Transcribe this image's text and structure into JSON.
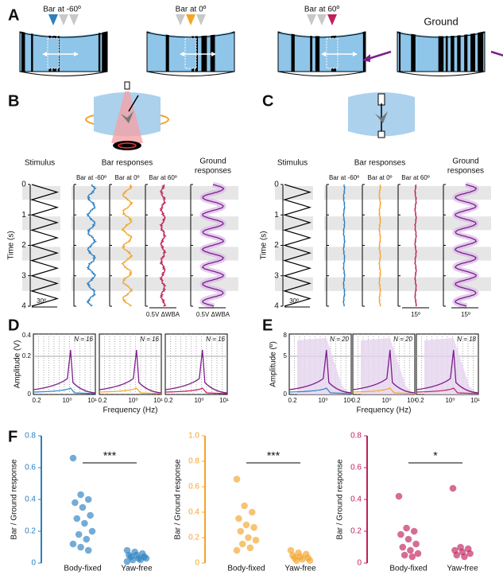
{
  "panel_labels": [
    "A",
    "B",
    "C",
    "D",
    "E",
    "F"
  ],
  "panel_a": {
    "bars": [
      "Bar at -60º",
      "Bar at 0º",
      "Bar at 60º"
    ],
    "ground": "Ground"
  },
  "panel_b": {
    "columns": [
      "Stimulus",
      "Bar responses",
      "Ground",
      "responses"
    ],
    "bars": [
      "Bar at -60º",
      "Bar at 0º",
      "Bar at 60º"
    ],
    "time_label": "Time (s)",
    "time_ticks": [
      "0",
      "1",
      "2",
      "3",
      "4"
    ],
    "stim_scale": "30º",
    "scales": [
      "0.5V ΔWBA",
      "0.5V ΔWBA"
    ]
  },
  "panel_c": {
    "columns": [
      "Stimulus",
      "Bar responses",
      "Ground",
      "responses"
    ],
    "bars": [
      "Bar at -60º",
      "Bar at 0º",
      "Bar at 60º"
    ],
    "time_label": "Time (s)",
    "time_ticks": [
      "0",
      "1",
      "2",
      "3",
      "4"
    ],
    "stim_scale": "30º",
    "scales": [
      "15º",
      "15º"
    ]
  },
  "panel_d": {
    "ylabel": "Amplitude (V)",
    "xlabel": "Frequency (Hz)",
    "yticks": [
      "0",
      "0.2",
      "0.4"
    ],
    "xticks": [
      "0.2",
      "10⁰",
      "10¹"
    ],
    "n_labels": [
      "N = 16",
      "N = 16",
      "N = 16"
    ]
  },
  "panel_e": {
    "ylabel": "Amplitude (º)",
    "xlabel": "Frequency (Hz)",
    "yticks": [
      "0",
      "5",
      "8"
    ],
    "xticks": [
      "0.2",
      "10⁰",
      "10¹"
    ],
    "n_labels": [
      "N = 20",
      "N = 20",
      "N = 18"
    ]
  },
  "panel_f": {
    "ylabel": "Bar / Ground response",
    "groups": [
      "Body-fixed",
      "Yaw-free"
    ],
    "plots": [
      {
        "color": "#2a7fc1",
        "significance": "***",
        "ylim": [
          0,
          0.8
        ],
        "yticks": [
          0,
          0.2,
          0.4,
          0.6,
          0.8
        ],
        "body_fixed": [
          0.66,
          0.43,
          0.4,
          0.38,
          0.35,
          0.3,
          0.28,
          0.25,
          0.2,
          0.18,
          0.15,
          0.12,
          0.1,
          0.08
        ],
        "yaw_free": [
          0.08,
          0.07,
          0.06,
          0.05,
          0.05,
          0.04,
          0.04,
          0.03,
          0.03,
          0.02,
          0.02,
          0.01
        ]
      },
      {
        "color": "#f3a42a",
        "significance": "***",
        "ylim": [
          0,
          1
        ],
        "yticks": [
          0,
          0.2,
          0.4,
          0.6,
          0.8,
          {
            "value": 1,
            "label": "1.0"
          }
        ],
        "body_fixed": [
          0.66,
          0.45,
          0.4,
          0.35,
          0.3,
          0.28,
          0.25,
          0.2,
          0.18,
          0.15,
          0.12,
          0.1
        ],
        "yaw_free": [
          0.1,
          0.08,
          0.07,
          0.06,
          0.05,
          0.04,
          0.04,
          0.03,
          0.02,
          0.02
        ]
      },
      {
        "color": "#c01f5c",
        "significance": "*",
        "ylim": [
          0,
          0.8
        ],
        "yticks": [
          0,
          0.2,
          0.4,
          0.6,
          0.8
        ],
        "body_fixed": [
          0.42,
          0.22,
          0.2,
          0.18,
          0.15,
          0.12,
          0.1,
          0.08,
          0.06,
          0.05,
          0.04
        ],
        "yaw_free": [
          0.47,
          0.1,
          0.09,
          0.08,
          0.07,
          0.06,
          0.05,
          0.04
        ]
      }
    ]
  }
}
